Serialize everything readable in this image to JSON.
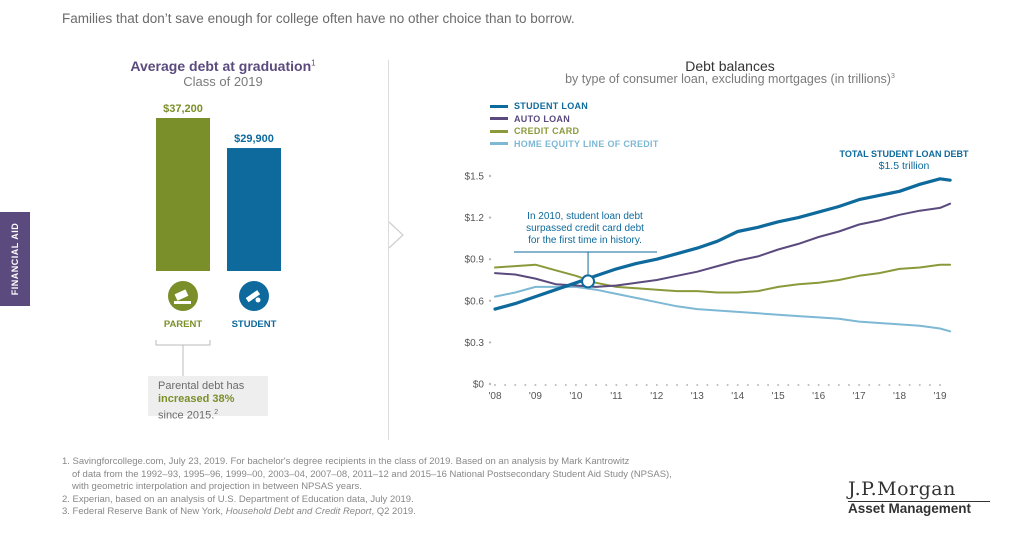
{
  "headline": "Families that don’t save enough for college often have no other choice than to borrow.",
  "side_tab": "FINANCIAL AID",
  "left": {
    "title": "Average debt at graduation",
    "title_sup": "1",
    "subtitle": "Class of 2019",
    "callout": {
      "line1": "Parental debt has",
      "line2": "increased 38%",
      "line3": "since 2015.",
      "sup": "2"
    }
  },
  "right": {
    "title": "Debt balances",
    "subtitle": "by type of consumer loan, excluding mortgages (in trillions)",
    "subtitle_sup": "3",
    "annotation": "In 2010, student loan debt surpassed credit card debt for the first time in history.",
    "annotation_lines": [
      "In 2010, student loan debt",
      "surpassed credit card debt",
      "for the first time in history."
    ],
    "total_label": "TOTAL STUDENT LOAN DEBT",
    "total_value": "$1.5 trillion"
  },
  "colors": {
    "parent": "#7a8f2a",
    "student": "#0e6a9c",
    "student_loan": "#0e6a9c",
    "auto_loan": "#5a4a7d",
    "credit_card": "#8a9a3a",
    "heloc": "#7db8d4",
    "purple": "#5a4a7d"
  },
  "icons": {
    "parent": "money-hand-icon",
    "student": "diploma-icon"
  },
  "chart_data": [
    {
      "type": "bar",
      "categories": [
        "PARENT",
        "STUDENT"
      ],
      "values": [
        37200,
        29900
      ],
      "value_labels": [
        "$37,200",
        "$29,900"
      ],
      "ylim": [
        0,
        37200
      ]
    },
    {
      "type": "line",
      "title": "Debt balances",
      "x_ticks": [
        "'08",
        "'09",
        "'10",
        "'11",
        "'12",
        "'13",
        "'14",
        "'15",
        "'16",
        "'17",
        "'18",
        "'19"
      ],
      "xlim": [
        2008,
        2019.5
      ],
      "ylim": [
        0,
        1.5
      ],
      "y_ticks": [
        0,
        0.3,
        0.6,
        0.9,
        1.2,
        1.5
      ],
      "y_tick_labels": [
        "$0",
        "$0.3",
        "$0.6",
        "$0.9",
        "$1.2",
        "$1.5"
      ],
      "series": [
        {
          "name": "STUDENT LOAN",
          "x": [
            2008,
            2008.5,
            2009,
            2009.5,
            2010,
            2010.5,
            2011,
            2011.5,
            2012,
            2012.5,
            2013,
            2013.5,
            2014,
            2014.5,
            2015,
            2015.5,
            2016,
            2016.5,
            2017,
            2017.5,
            2018,
            2018.5,
            2019,
            2019.25
          ],
          "values": [
            0.54,
            0.58,
            0.63,
            0.68,
            0.73,
            0.78,
            0.83,
            0.87,
            0.9,
            0.94,
            0.98,
            1.03,
            1.1,
            1.13,
            1.17,
            1.2,
            1.24,
            1.28,
            1.33,
            1.36,
            1.39,
            1.44,
            1.48,
            1.47
          ]
        },
        {
          "name": "AUTO LOAN",
          "x": [
            2008,
            2008.5,
            2009,
            2009.5,
            2010,
            2010.5,
            2011,
            2011.5,
            2012,
            2012.5,
            2013,
            2013.5,
            2014,
            2014.5,
            2015,
            2015.5,
            2016,
            2016.5,
            2017,
            2017.5,
            2018,
            2018.5,
            2019,
            2019.25
          ],
          "values": [
            0.8,
            0.79,
            0.76,
            0.72,
            0.71,
            0.7,
            0.71,
            0.73,
            0.75,
            0.78,
            0.81,
            0.85,
            0.89,
            0.92,
            0.97,
            1.01,
            1.06,
            1.1,
            1.15,
            1.18,
            1.22,
            1.25,
            1.27,
            1.3
          ]
        },
        {
          "name": "CREDIT CARD",
          "x": [
            2008,
            2008.5,
            2009,
            2009.5,
            2010,
            2010.5,
            2011,
            2011.5,
            2012,
            2012.5,
            2013,
            2013.5,
            2014,
            2014.5,
            2015,
            2015.5,
            2016,
            2016.5,
            2017,
            2017.5,
            2018,
            2018.5,
            2019,
            2019.25
          ],
          "values": [
            0.84,
            0.85,
            0.86,
            0.82,
            0.78,
            0.73,
            0.7,
            0.69,
            0.68,
            0.67,
            0.67,
            0.66,
            0.66,
            0.67,
            0.7,
            0.72,
            0.73,
            0.75,
            0.78,
            0.8,
            0.83,
            0.84,
            0.86,
            0.86
          ]
        },
        {
          "name": "HOME EQUITY LINE OF CREDIT",
          "x": [
            2008,
            2008.5,
            2009,
            2009.5,
            2010,
            2010.5,
            2011,
            2011.5,
            2012,
            2012.5,
            2013,
            2013.5,
            2014,
            2014.5,
            2015,
            2015.5,
            2016,
            2016.5,
            2017,
            2017.5,
            2018,
            2018.5,
            2019,
            2019.25
          ],
          "values": [
            0.63,
            0.66,
            0.7,
            0.7,
            0.7,
            0.68,
            0.65,
            0.62,
            0.59,
            0.56,
            0.54,
            0.53,
            0.52,
            0.51,
            0.5,
            0.49,
            0.48,
            0.47,
            0.45,
            0.44,
            0.43,
            0.42,
            0.4,
            0.38
          ]
        }
      ],
      "annotation_point": {
        "x": 2010.3,
        "y": 0.74
      },
      "grid": false
    }
  ],
  "footnotes": [
    "1. Savingforcollege.com, July 23, 2019. For bachelor's degree recipients in the class of 2019. Based on an analysis by Mark Kantrowitz",
    "of data from the 1992–93, 1995–96, 1999–00, 2003–04, 2007–08, 2011–12 and 2015–16 National Postsecondary Student Aid Study (NPSAS),",
    "with geometric interpolation and projection in between NPSAS years.",
    "2. Experian, based on an analysis of U.S. Department of Education data, July 2019.",
    "3. Federal Reserve Bank of New York, ",
    "Household Debt and Credit Report",
    ", Q2 2019."
  ],
  "logo": {
    "top": "J.P.Morgan",
    "bottom": "Asset Management"
  }
}
